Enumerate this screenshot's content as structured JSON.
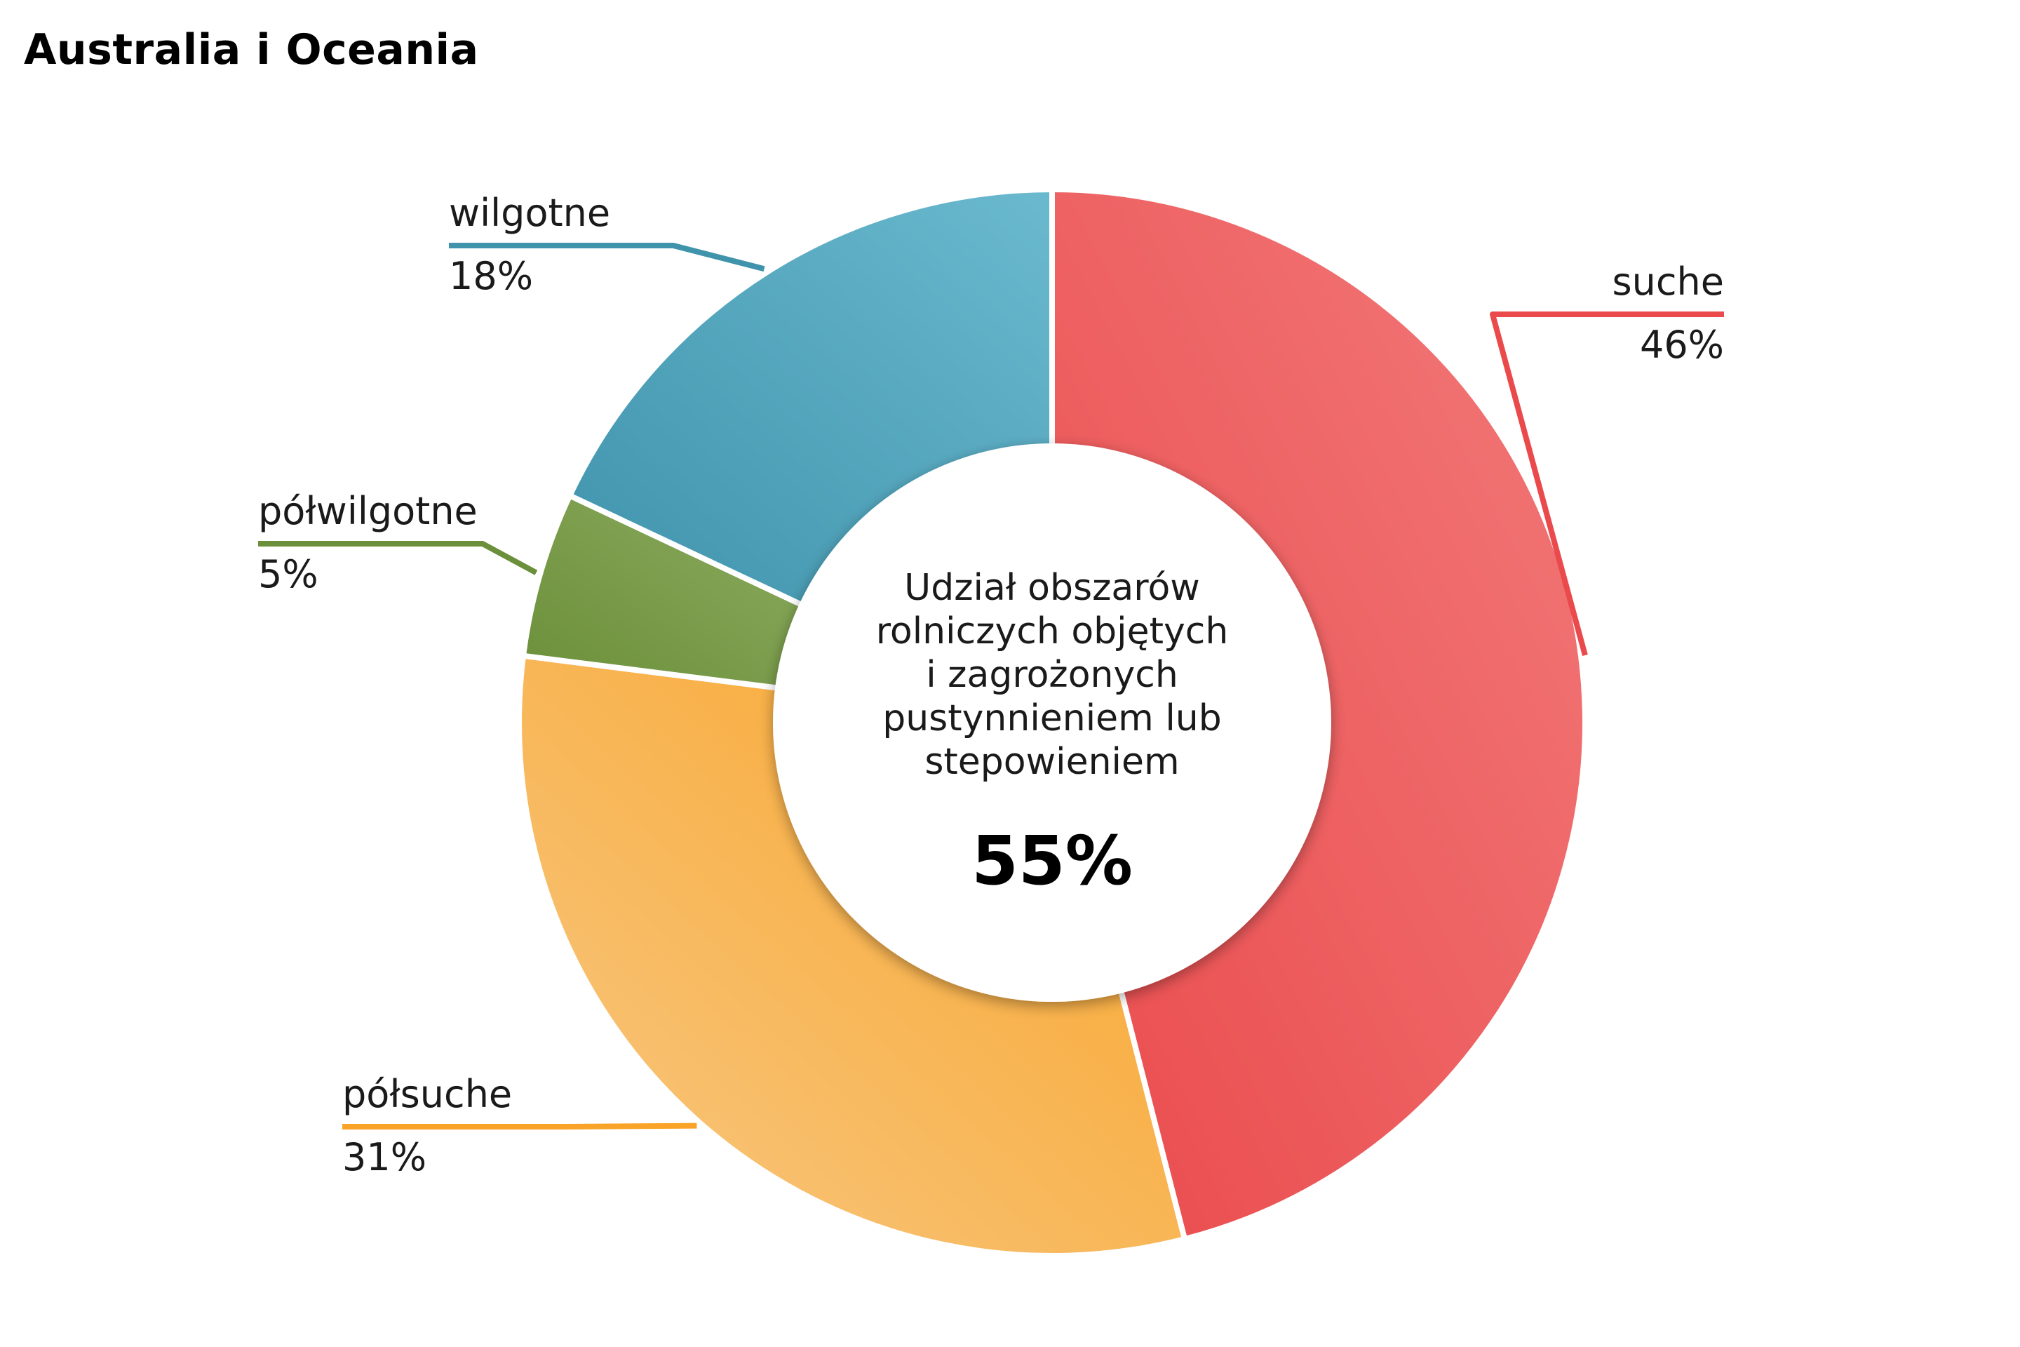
{
  "chart_data": {
    "type": "pie",
    "title": "Australia i Oceania",
    "variant": "donut",
    "categories": [
      "suche",
      "półsuche",
      "półwilgotne",
      "wilgotne"
    ],
    "values": [
      46,
      31,
      5,
      18
    ],
    "value_labels": [
      "46%",
      "31%",
      "5%",
      "18%"
    ],
    "colors": [
      "#ea4a4c",
      "#f9a428",
      "#6b8f3a",
      "#3f93ab"
    ],
    "light_colors": [
      "#f27a7a",
      "#f8c884",
      "#8bab5e",
      "#6ab9cf"
    ],
    "center_lines": [
      "Udział obszarów",
      "rolniczych objętych",
      "i zagrożonych",
      "pustynnieniem lub",
      "stepowieniem"
    ],
    "center_value": "55%"
  }
}
